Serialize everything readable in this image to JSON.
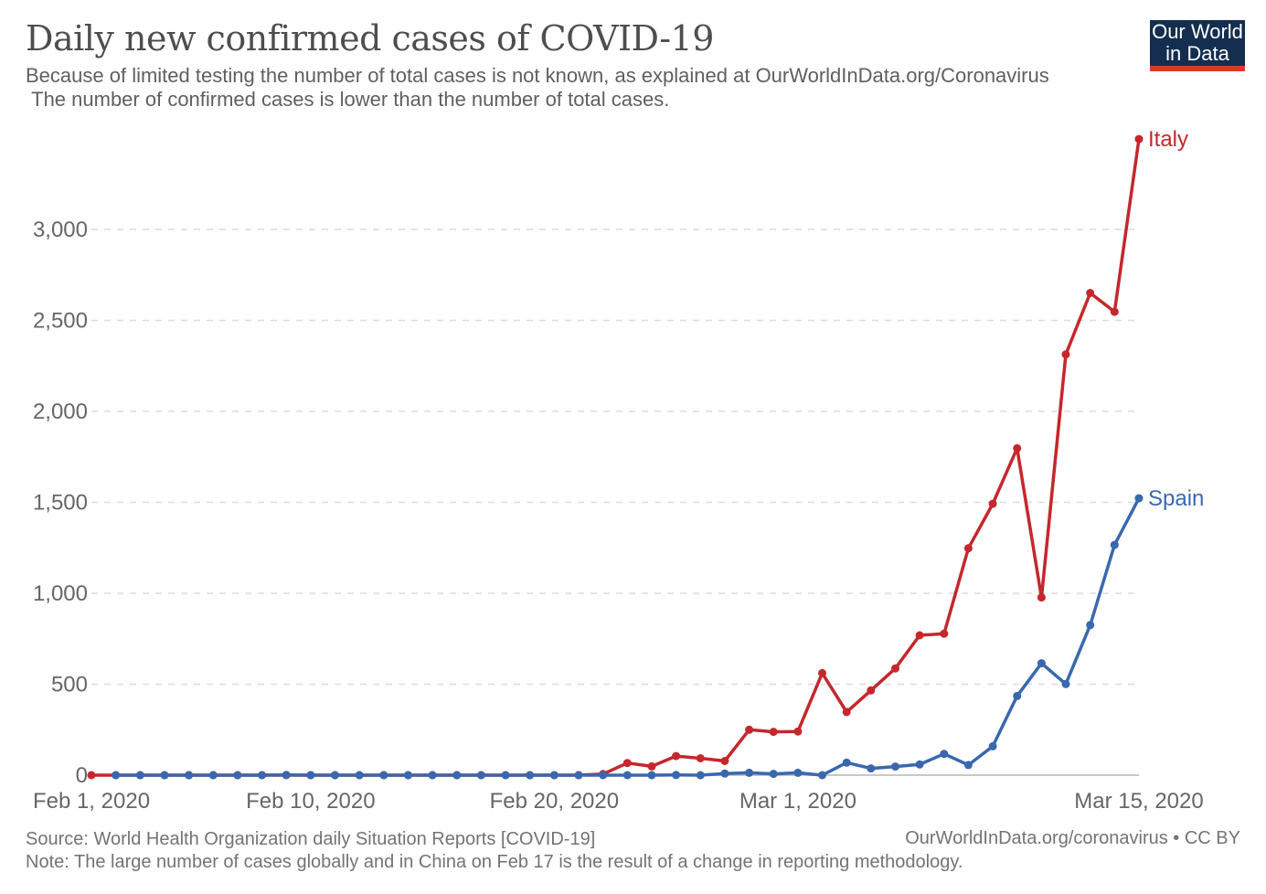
{
  "header": {
    "title": "Daily new confirmed cases of COVID-19",
    "subtitle_line1": "Because of limited testing the number of total cases is not known, as explained at OurWorldInData.org/Coronavirus",
    "subtitle_line2": " The number of confirmed cases is lower than the number of total cases.",
    "logo": {
      "line1": "Our World",
      "line2": "in Data",
      "bg_color": "#132e4e",
      "bar_color": "#dc392c"
    }
  },
  "footer": {
    "source": "Source: World Health Organization daily Situation Reports [COVID-19]",
    "note": "Note: The large number of cases globally and in China on Feb 17 is the result of a change in reporting methodology.",
    "credit": "OurWorldInData.org/coronavirus • CC BY"
  },
  "chart_data": {
    "type": "line",
    "title": "Daily new confirmed cases of COVID-19",
    "grid": true,
    "legend_position": "line-end-labels",
    "ylim": [
      0,
      3500
    ],
    "y_ticks": [
      {
        "value": 0,
        "label": "0"
      },
      {
        "value": 500,
        "label": "500"
      },
      {
        "value": 1000,
        "label": "1,000"
      },
      {
        "value": 1500,
        "label": "1,500"
      },
      {
        "value": 2000,
        "label": "2,000"
      },
      {
        "value": 2500,
        "label": "2,500"
      },
      {
        "value": 3000,
        "label": "3,000"
      }
    ],
    "x_ticks": [
      {
        "index": 0,
        "label": "Feb 1, 2020"
      },
      {
        "index": 9,
        "label": "Feb 10, 2020"
      },
      {
        "index": 19,
        "label": "Feb 20, 2020"
      },
      {
        "index": 29,
        "label": "Mar 1, 2020"
      },
      {
        "index": 43,
        "label": "Mar 15, 2020"
      }
    ],
    "x_dates": [
      "2020-02-01",
      "2020-02-02",
      "2020-02-03",
      "2020-02-04",
      "2020-02-05",
      "2020-02-06",
      "2020-02-07",
      "2020-02-08",
      "2020-02-09",
      "2020-02-10",
      "2020-02-11",
      "2020-02-12",
      "2020-02-13",
      "2020-02-14",
      "2020-02-15",
      "2020-02-16",
      "2020-02-17",
      "2020-02-18",
      "2020-02-19",
      "2020-02-20",
      "2020-02-21",
      "2020-02-22",
      "2020-02-23",
      "2020-02-24",
      "2020-02-25",
      "2020-02-26",
      "2020-02-27",
      "2020-02-28",
      "2020-02-29",
      "2020-03-01",
      "2020-03-02",
      "2020-03-03",
      "2020-03-04",
      "2020-03-05",
      "2020-03-06",
      "2020-03-07",
      "2020-03-08",
      "2020-03-09",
      "2020-03-10",
      "2020-03-11",
      "2020-03-12",
      "2020-03-13",
      "2020-03-14",
      "2020-03-15"
    ],
    "series": [
      {
        "name": "Italy",
        "color": "#c5272c",
        "start_index": 0,
        "values": [
          0,
          0,
          0,
          0,
          0,
          0,
          0,
          0,
          0,
          0,
          0,
          0,
          0,
          0,
          0,
          0,
          0,
          0,
          0,
          0,
          0,
          6,
          67,
          48,
          105,
          93,
          78,
          250,
          238,
          240,
          561,
          347,
          466,
          587,
          769,
          778,
          1247,
          1492,
          1797,
          977,
          2313,
          2651,
          2547,
          3497
        ]
      },
      {
        "name": "Spain",
        "color": "#3968af",
        "start_index": 1,
        "values": [
          0,
          0,
          0,
          0,
          0,
          0,
          0,
          1,
          0,
          0,
          0,
          0,
          0,
          0,
          0,
          0,
          0,
          0,
          0,
          0,
          0,
          0,
          0,
          1,
          0,
          9,
          13,
          7,
          13,
          0,
          69,
          37,
          47,
          59,
          117,
          56,
          159,
          435,
          615,
          501,
          825,
          1266,
          1522
        ]
      }
    ],
    "style": {
      "grid_color": "#dcdcdc",
      "axis_color": "#c8c8c8",
      "tick_text_color": "#666666"
    }
  }
}
